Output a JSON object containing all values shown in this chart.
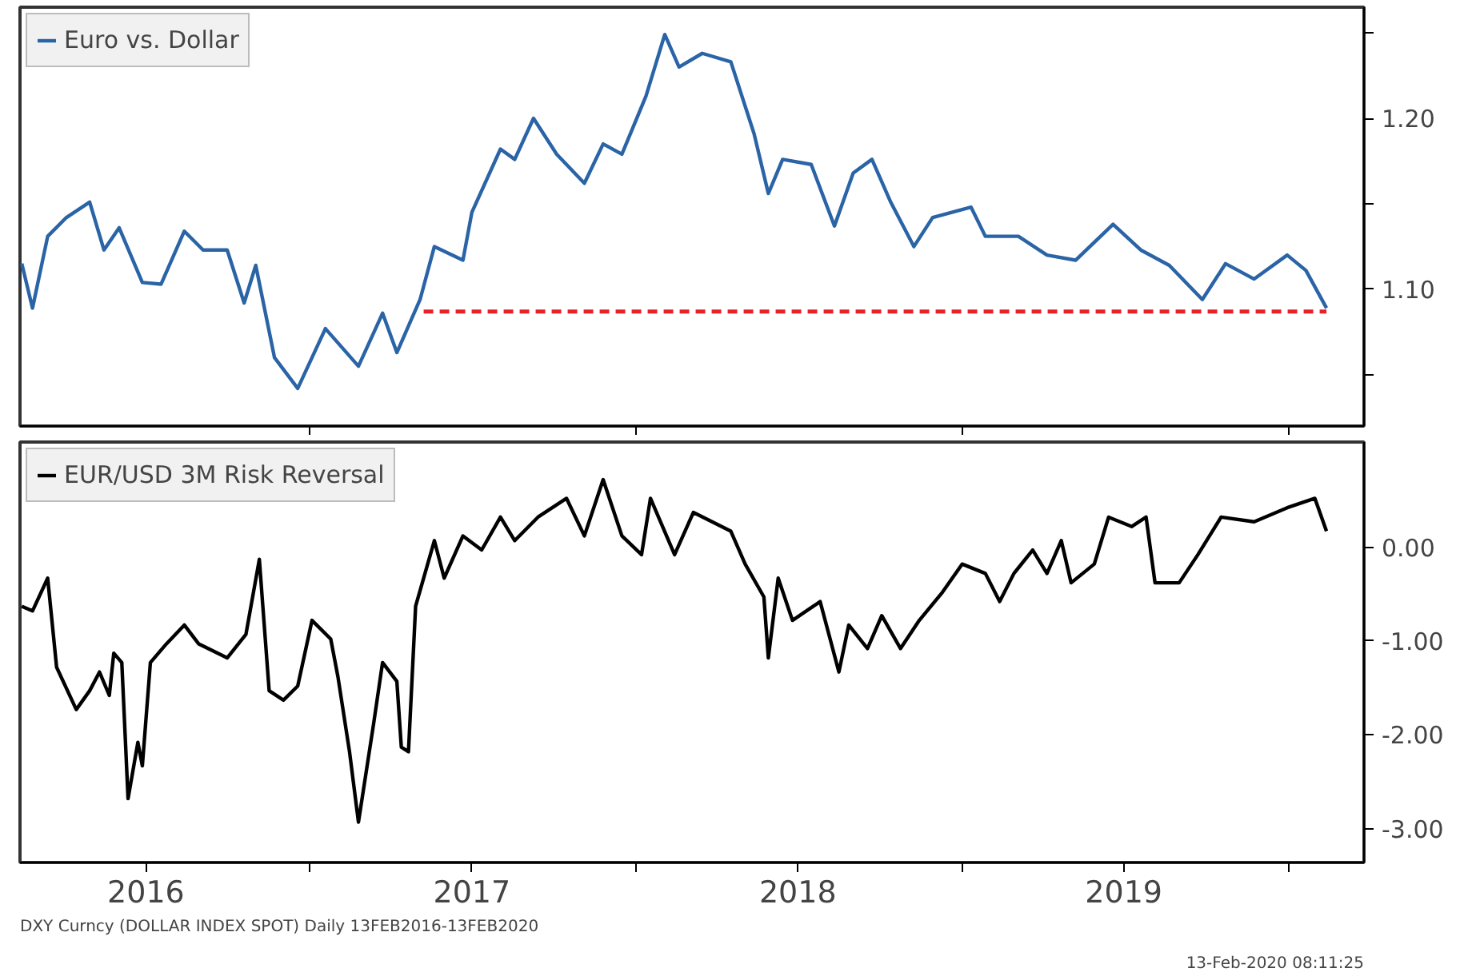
{
  "chart_data": [
    {
      "type": "line",
      "xlim": [
        "2016-02-11",
        "2020-03-26"
      ],
      "ylim": [
        1.02,
        1.265
      ],
      "yticks": [
        {
          "value": 1.05,
          "label": null
        },
        {
          "value": 1.1,
          "label": "1.10"
        },
        {
          "value": 1.15,
          "label": null
        },
        {
          "value": 1.2,
          "label": "1.20"
        },
        {
          "value": 1.25,
          "label": null
        }
      ],
      "xticks": [
        {
          "value": "2017-01-01",
          "label": null
        },
        {
          "value": "2018-01-01",
          "label": null
        },
        {
          "value": "2019-01-01",
          "label": null
        },
        {
          "value": "2020-01-01",
          "label": null
        }
      ],
      "tick_labels": "y",
      "grid": false,
      "legend": "top left",
      "line_style": "solid",
      "marker": "none",
      "series": [
        {
          "name": "Euro vs. Dollar",
          "color": "#2a64a6",
          "x": [
            "2016-02-13",
            "2016-02-25",
            "2016-03-13",
            "2016-04-03",
            "2016-04-29",
            "2016-05-15",
            "2016-06-01",
            "2016-06-27",
            "2016-07-18",
            "2016-08-13",
            "2016-09-03",
            "2016-09-30",
            "2016-10-19",
            "2016-11-01",
            "2016-11-22",
            "2016-12-18",
            "2017-01-18",
            "2017-02-24",
            "2017-03-23",
            "2017-04-08",
            "2017-05-04",
            "2017-05-20",
            "2017-06-21",
            "2017-07-01",
            "2017-08-02",
            "2017-08-18",
            "2017-09-08",
            "2017-10-04",
            "2017-11-04",
            "2017-11-25",
            "2017-12-16",
            "2018-01-12",
            "2018-02-02",
            "2018-02-18",
            "2018-03-16",
            "2018-04-17",
            "2018-05-13",
            "2018-05-29",
            "2018-06-14",
            "2018-07-16",
            "2018-08-11",
            "2018-09-01",
            "2018-09-22",
            "2018-10-13",
            "2018-11-08",
            "2018-11-29",
            "2019-01-11",
            "2019-01-27",
            "2019-03-05",
            "2019-04-06",
            "2019-05-08",
            "2019-06-19",
            "2019-07-20",
            "2019-08-21",
            "2019-09-27",
            "2019-10-23",
            "2019-11-24",
            "2019-12-31",
            "2020-01-21",
            "2020-02-13"
          ],
          "values": [
            1.115,
            1.089,
            1.131,
            1.142,
            1.151,
            1.123,
            1.136,
            1.104,
            1.103,
            1.134,
            1.123,
            1.123,
            1.092,
            1.114,
            1.06,
            1.042,
            1.077,
            1.055,
            1.086,
            1.063,
            1.094,
            1.125,
            1.117,
            1.145,
            1.182,
            1.176,
            1.2,
            1.179,
            1.162,
            1.185,
            1.179,
            1.213,
            1.249,
            1.23,
            1.238,
            1.233,
            1.191,
            1.156,
            1.176,
            1.173,
            1.137,
            1.168,
            1.176,
            1.151,
            1.125,
            1.142,
            1.148,
            1.131,
            1.131,
            1.12,
            1.117,
            1.138,
            1.123,
            1.114,
            1.094,
            1.115,
            1.106,
            1.12,
            1.111,
            1.089
          ]
        },
        {
          "type": "line",
          "color": "#e8202a",
          "line_style": "dashed",
          "x": [
            "2017-05-08",
            "2020-02-13"
          ],
          "values": [
            1.087,
            1.087
          ]
        }
      ]
    },
    {
      "type": "line",
      "xlim": [
        "2016-02-11",
        "2020-03-26"
      ],
      "ylim": [
        -3.36,
        1.12
      ],
      "yticks": [
        {
          "value": -3,
          "label": "-3.00"
        },
        {
          "value": -2,
          "label": "-2.00"
        },
        {
          "value": -1,
          "label": "-1.00"
        },
        {
          "value": 0,
          "label": "0.00"
        }
      ],
      "xticks": [
        {
          "value": "2016-07-01",
          "label": "2016"
        },
        {
          "value": "2017-01-01",
          "label": null
        },
        {
          "value": "2017-07-01",
          "label": "2017"
        },
        {
          "value": "2018-01-01",
          "label": null
        },
        {
          "value": "2018-07-01",
          "label": "2018"
        },
        {
          "value": "2019-01-01",
          "label": null
        },
        {
          "value": "2019-07-01",
          "label": "2019"
        },
        {
          "value": "2020-01-01",
          "label": null
        }
      ],
      "grid": false,
      "legend": "top left",
      "line_style": "solid",
      "marker": "none",
      "annotations": [
        "DXY Curncy (DOLLAR INDEX SPOT) Daily 13FEB2016-13FEB2020",
        "13-Feb-2020 08:11:25"
      ],
      "series": [
        {
          "name": "EUR/USD 3M Risk Reversal",
          "color": "#000000",
          "x": [
            "2016-02-13",
            "2016-02-25",
            "2016-03-13",
            "2016-03-23",
            "2016-04-14",
            "2016-04-29",
            "2016-05-10",
            "2016-05-21",
            "2016-05-26",
            "2016-06-04",
            "2016-06-11",
            "2016-06-22",
            "2016-06-27",
            "2016-07-06",
            "2016-07-24",
            "2016-08-13",
            "2016-08-29",
            "2016-09-30",
            "2016-10-21",
            "2016-11-05",
            "2016-11-16",
            "2016-12-02",
            "2016-12-18",
            "2017-01-03",
            "2017-01-24",
            "2017-02-01",
            "2017-02-14",
            "2017-02-24",
            "2017-03-13",
            "2017-03-23",
            "2017-04-08",
            "2017-04-13",
            "2017-04-21",
            "2017-04-29",
            "2017-05-20",
            "2017-05-31",
            "2017-06-21",
            "2017-07-12",
            "2017-08-02",
            "2017-08-18",
            "2017-09-13",
            "2017-10-15",
            "2017-11-04",
            "2017-11-25",
            "2017-12-16",
            "2018-01-07",
            "2018-01-17",
            "2018-02-13",
            "2018-03-06",
            "2018-04-17",
            "2018-05-03",
            "2018-05-24",
            "2018-05-29",
            "2018-06-09",
            "2018-06-25",
            "2018-07-26",
            "2018-08-16",
            "2018-08-27",
            "2018-09-17",
            "2018-10-03",
            "2018-10-24",
            "2018-11-14",
            "2018-12-10",
            "2019-01-01",
            "2019-01-27",
            "2019-02-12",
            "2019-02-28",
            "2019-03-21",
            "2019-04-06",
            "2019-04-22",
            "2019-05-03",
            "2019-05-29",
            "2019-06-14",
            "2019-07-10",
            "2019-07-26",
            "2019-08-05",
            "2019-09-01",
            "2019-09-22",
            "2019-10-18",
            "2019-11-24",
            "2019-12-31",
            "2020-01-31",
            "2020-02-13"
          ],
          "values": [
            -0.63,
            -0.68,
            -0.33,
            -1.28,
            -1.73,
            -1.53,
            -1.33,
            -1.58,
            -1.13,
            -1.23,
            -2.68,
            -2.08,
            -2.33,
            -1.23,
            -1.03,
            -0.83,
            -1.03,
            -1.18,
            -0.93,
            -0.13,
            -1.53,
            -1.63,
            -1.48,
            -0.78,
            -0.98,
            -1.38,
            -2.18,
            -2.93,
            -1.88,
            -1.23,
            -1.43,
            -2.13,
            -2.18,
            -0.63,
            0.07,
            -0.33,
            0.12,
            -0.03,
            0.32,
            0.07,
            0.32,
            0.52,
            0.12,
            0.72,
            0.12,
            -0.08,
            0.52,
            -0.08,
            0.37,
            0.17,
            -0.18,
            -0.53,
            -1.18,
            -0.33,
            -0.78,
            -0.58,
            -1.33,
            -0.83,
            -1.08,
            -0.73,
            -1.08,
            -0.78,
            -0.48,
            -0.18,
            -0.28,
            -0.58,
            -0.28,
            -0.03,
            -0.28,
            0.07,
            -0.38,
            -0.18,
            0.32,
            0.22,
            0.32,
            -0.38,
            -0.38,
            -0.08,
            0.32,
            0.27,
            0.42,
            0.52,
            0.17
          ]
        }
      ]
    }
  ]
}
